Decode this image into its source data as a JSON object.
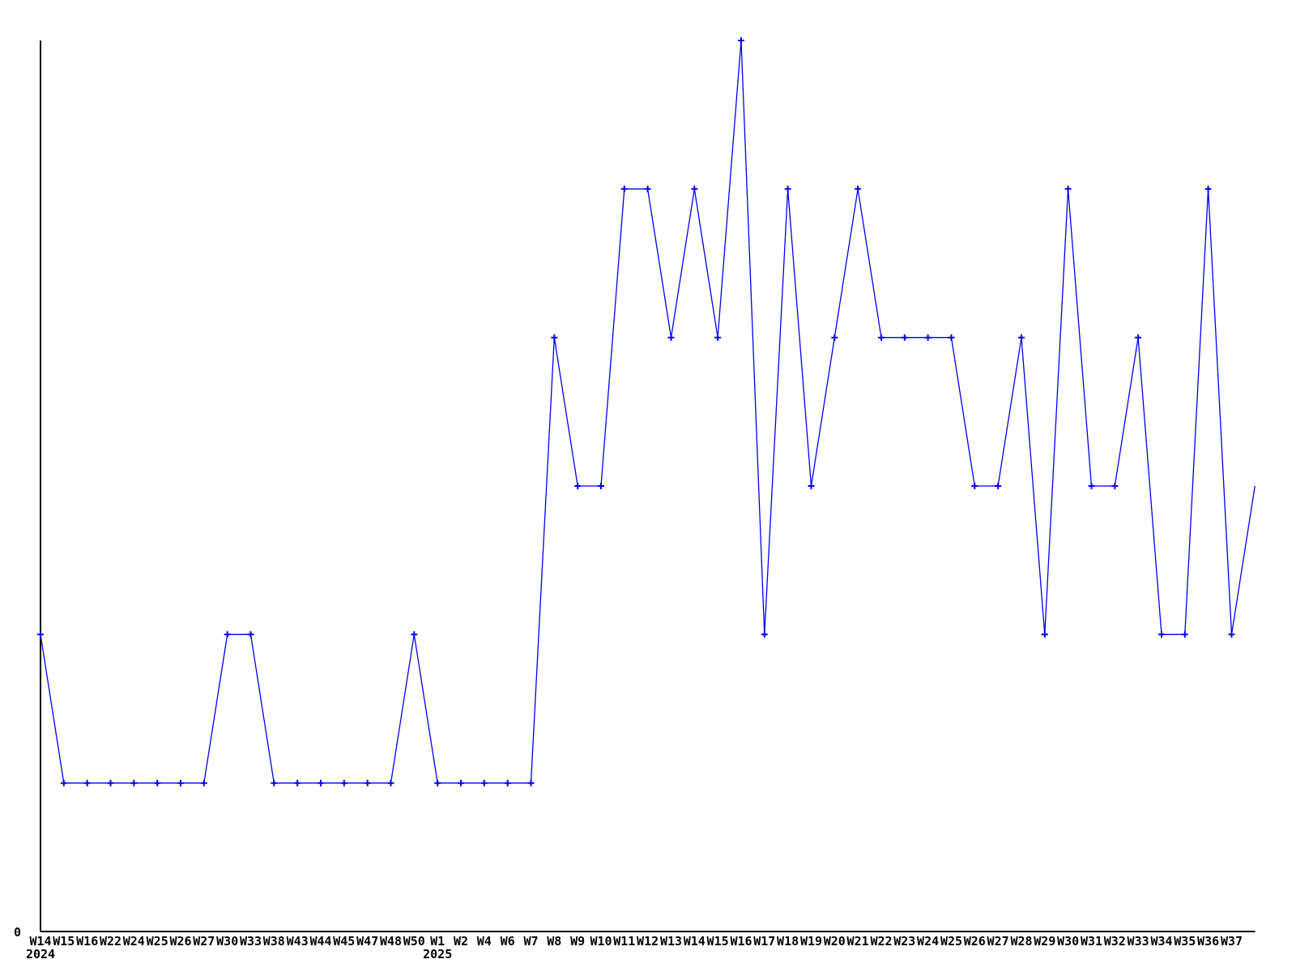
{
  "chart_data": {
    "type": "line",
    "title": "",
    "xlabel": "",
    "ylabel": "",
    "grid": false,
    "legend": "none",
    "ylim": [
      0,
      6
    ],
    "y_origin_label": "0",
    "line_color": "#0000f0",
    "axis_color": "#000000",
    "marker": "plus",
    "marker_on_last_point": false,
    "x_tick_labels": [
      "W14",
      "W15",
      "W16",
      "W22",
      "W24",
      "W25",
      "W26",
      "W27",
      "W30",
      "W33",
      "W38",
      "W43",
      "W44",
      "W45",
      "W47",
      "W48",
      "W50",
      "W1",
      "W2",
      "W4",
      "W6",
      "W7",
      "W8",
      "W9",
      "W10",
      "W11",
      "W12",
      "W13",
      "W14",
      "W15",
      "W16",
      "W17",
      "W18",
      "W19",
      "W20",
      "W21",
      "W22",
      "W23",
      "W24",
      "W25",
      "W26",
      "W27",
      "W28",
      "W29",
      "W30",
      "W31",
      "W32",
      "W33",
      "W34",
      "W35",
      "W36",
      "W37"
    ],
    "year_labels": [
      {
        "text": "2024",
        "tick_index": 0
      },
      {
        "text": "2025",
        "tick_index": 17
      }
    ],
    "values": [
      2,
      1,
      1,
      1,
      1,
      1,
      1,
      1,
      2,
      2,
      1,
      1,
      1,
      1,
      1,
      1,
      2,
      1,
      1,
      1,
      1,
      1,
      4,
      3,
      3,
      5,
      5,
      4,
      5,
      4,
      6,
      2,
      5,
      3,
      4,
      5,
      4,
      4,
      4,
      4,
      3,
      3,
      4,
      2,
      5,
      3,
      3,
      4,
      2,
      2,
      5,
      2,
      3
    ],
    "trailing_unlabeled_points": 1
  }
}
